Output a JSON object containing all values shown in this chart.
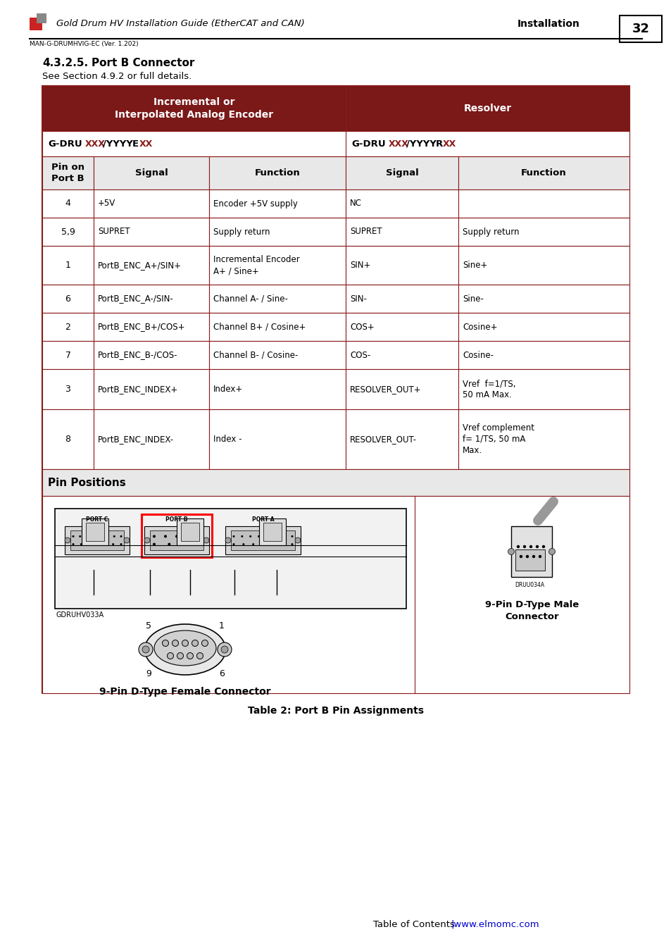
{
  "page_title": "Gold Drum HV Installation Guide (EtherCAT and CAN)",
  "page_section": "Installation",
  "page_num": "32",
  "doc_ref": "MAN-G-DRUMHVIG-EC (Ver. 1.202)",
  "section_heading": "4.3.2.5.",
  "section_heading2": "Port B Connector",
  "section_subtext": "See Section 4.9.2 or full details.",
  "table_caption": "Table 2: Port B Pin Assignments",
  "footer_toc": "Table of Contents",
  "footer_url": "|www.elmomc.com",
  "dark_red": "#8B1A1A",
  "light_gray": "#E8E8E8",
  "white": "#FFFFFF",
  "black": "#000000",
  "header_bg": "#7B1818",
  "row_data": [
    [
      "4",
      "+5V",
      "Encoder +5V supply",
      "NC",
      ""
    ],
    [
      "5,9",
      "SUPRET",
      "Supply return",
      "SUPRET",
      "Supply return"
    ],
    [
      "1",
      "PortB_ENC_A+/SIN+",
      "Incremental Encoder\nA+ / Sine+",
      "SIN+",
      "Sine+"
    ],
    [
      "6",
      "PortB_ENC_A-/SIN-",
      "Channel A- / Sine-",
      "SIN-",
      "Sine-"
    ],
    [
      "2",
      "PortB_ENC_B+/COS+",
      "Channel B+ / Cosine+",
      "COS+",
      "Cosine+"
    ],
    [
      "7",
      "PortB_ENC_B-/COS-",
      "Channel B- / Cosine-",
      "COS-",
      "Cosine-"
    ],
    [
      "3",
      "PortB_ENC_INDEX+",
      "Index+",
      "RESOLVER_OUT+",
      "Vref  f=1/TS,\n50 mA Max."
    ],
    [
      "8",
      "PortB_ENC_INDEX-",
      "Index -",
      "RESOLVER_OUT-",
      "Vref complement\nf= 1/TS, 50 mA\nMax."
    ]
  ],
  "pin_positions_label": "Pin Positions",
  "gdruhv_label": "GDRUHV033A",
  "female_connector_label": "9-Pin D-Type Female Connector",
  "male_connector_label": "9-Pin D-Type Male\nConnector"
}
